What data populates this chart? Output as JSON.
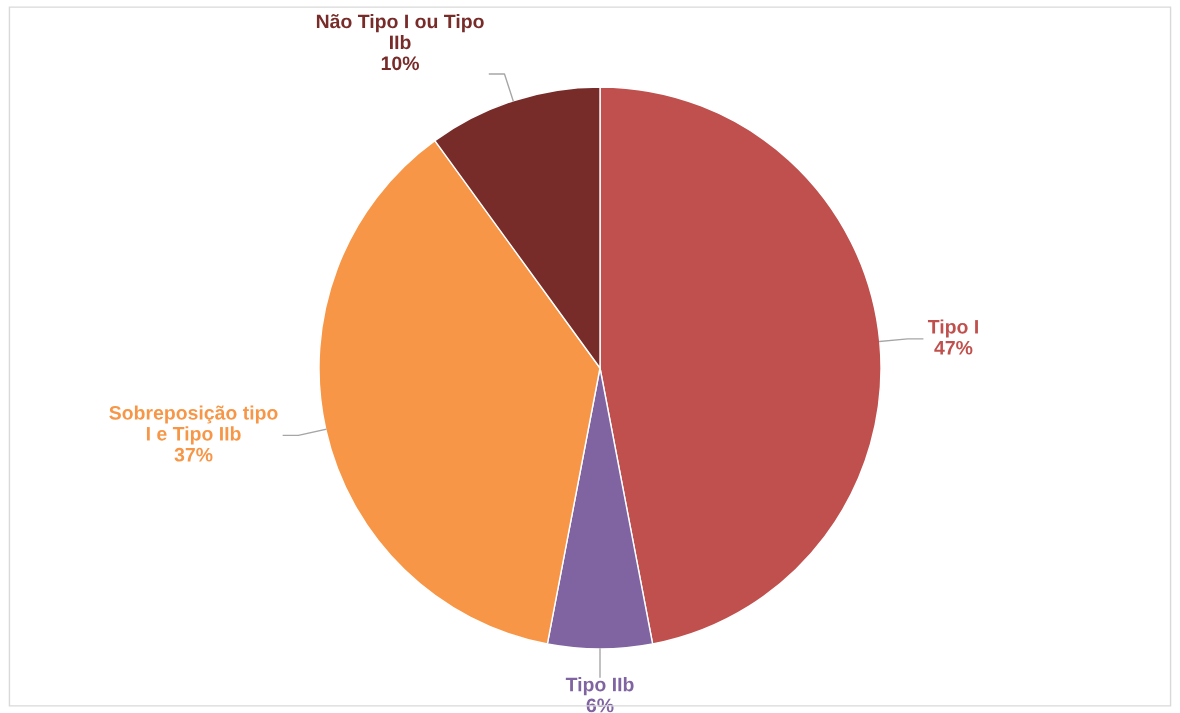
{
  "chart_data": {
    "type": "pie",
    "categories": [
      "Tipo I",
      "Tipo IIb",
      "Sobreposição tipo I e Tipo IIb",
      "Não Tipo I ou Tipo IIb"
    ],
    "values": [
      47,
      6,
      37,
      10
    ],
    "colors": [
      "#c0504d",
      "#8064a2",
      "#f79646",
      "#772c2a"
    ],
    "value_labels": [
      "47%",
      "6%",
      "37%",
      "10%"
    ]
  }
}
